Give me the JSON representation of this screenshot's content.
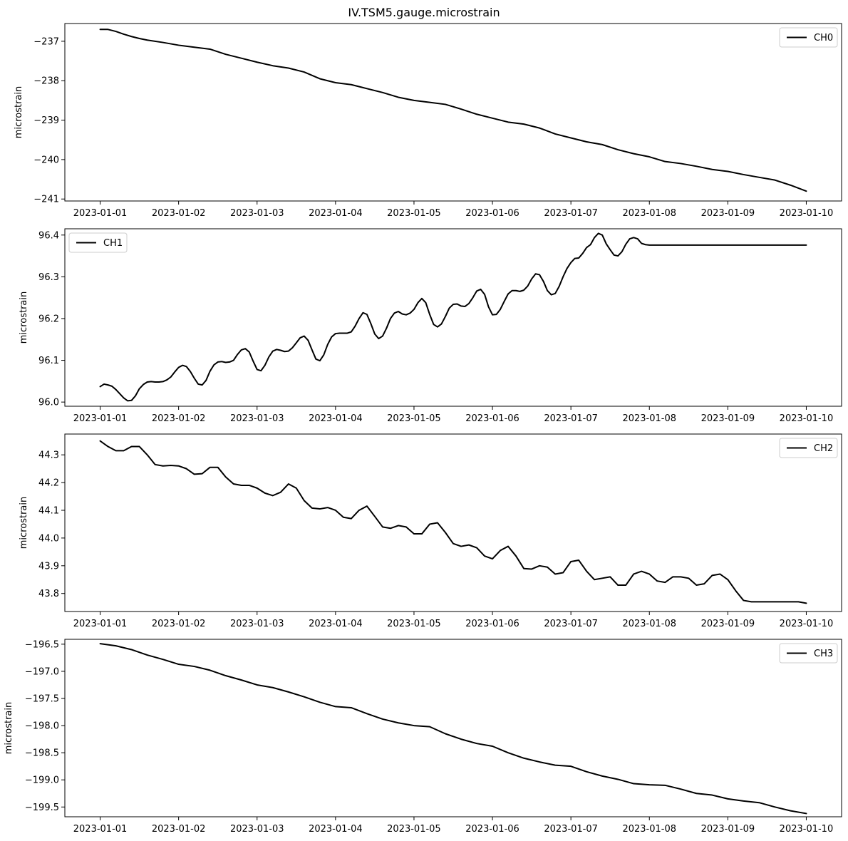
{
  "figure": {
    "title": "IV.TSM5.gauge.microstrain"
  },
  "chart_data": [
    {
      "type": "line",
      "title": "IV.TSM5.gauge.microstrain",
      "xlabel": "",
      "ylabel": "microstrain",
      "x_tick_labels": [
        "2023-01-01",
        "2023-01-02",
        "2023-01-03",
        "2023-01-04",
        "2023-01-05",
        "2023-01-06",
        "2023-01-07",
        "2023-01-08",
        "2023-01-09",
        "2023-01-10"
      ],
      "y_ticks": [
        -237,
        -238,
        -239,
        -240,
        -241
      ],
      "y_tick_labels": [
        "−237",
        "−238",
        "−239",
        "−240",
        "−241"
      ],
      "ylim": [
        -241.05,
        -236.55
      ],
      "xlim": [
        -0.45,
        9.45
      ],
      "grid": false,
      "legend_position": "upper right",
      "series": [
        {
          "name": "CH0",
          "color": "#000000",
          "x": [
            0,
            0.1,
            0.2,
            0.3,
            0.4,
            0.5,
            0.6,
            0.8,
            1.0,
            1.2,
            1.4,
            1.6,
            1.8,
            2.0,
            2.2,
            2.4,
            2.6,
            2.8,
            3.0,
            3.2,
            3.4,
            3.6,
            3.8,
            4.0,
            4.2,
            4.4,
            4.6,
            4.8,
            5.0,
            5.2,
            5.4,
            5.6,
            5.8,
            6.0,
            6.2,
            6.4,
            6.6,
            6.8,
            7.0,
            7.2,
            7.4,
            7.6,
            7.8,
            8.0,
            8.2,
            8.4,
            8.6,
            8.8,
            9.0
          ],
          "values": [
            -236.7,
            -236.7,
            -236.75,
            -236.82,
            -236.88,
            -236.93,
            -236.97,
            -237.03,
            -237.1,
            -237.15,
            -237.2,
            -237.33,
            -237.43,
            -237.53,
            -237.62,
            -237.68,
            -237.78,
            -237.95,
            -238.05,
            -238.1,
            -238.2,
            -238.3,
            -238.42,
            -238.5,
            -238.55,
            -238.6,
            -238.72,
            -238.85,
            -238.95,
            -239.05,
            -239.1,
            -239.2,
            -239.35,
            -239.45,
            -239.55,
            -239.62,
            -239.75,
            -239.85,
            -239.93,
            -240.05,
            -240.1,
            -240.17,
            -240.25,
            -240.3,
            -240.38,
            -240.45,
            -240.52,
            -240.65,
            -240.8
          ]
        }
      ]
    },
    {
      "type": "line",
      "title": "",
      "xlabel": "",
      "ylabel": "microstrain",
      "x_tick_labels": [
        "2023-01-01",
        "2023-01-02",
        "2023-01-03",
        "2023-01-04",
        "2023-01-05",
        "2023-01-06",
        "2023-01-07",
        "2023-01-08",
        "2023-01-09",
        "2023-01-10"
      ],
      "y_ticks": [
        96.0,
        96.1,
        96.2,
        96.3,
        96.4
      ],
      "y_tick_labels": [
        "96.0",
        "96.1",
        "96.2",
        "96.3",
        "96.4"
      ],
      "ylim": [
        95.99,
        96.415
      ],
      "xlim": [
        -0.45,
        9.45
      ],
      "grid": false,
      "legend_position": "upper left",
      "series": [
        {
          "name": "CH1",
          "color": "#000000",
          "x": [
            0,
            0.05,
            0.1,
            0.15,
            0.2,
            0.25,
            0.3,
            0.35,
            0.4,
            0.45,
            0.5,
            0.55,
            0.6,
            0.65,
            0.7,
            0.75,
            0.8,
            0.85,
            0.9,
            0.95,
            1.0,
            1.05,
            1.1,
            1.15,
            1.2,
            1.25,
            1.3,
            1.35,
            1.4,
            1.45,
            1.5,
            1.55,
            1.6,
            1.65,
            1.7,
            1.75,
            1.8,
            1.85,
            1.9,
            1.95,
            2.0,
            2.05,
            2.1,
            2.15,
            2.2,
            2.25,
            2.3,
            2.35,
            2.4,
            2.45,
            2.5,
            2.55,
            2.6,
            2.65,
            2.7,
            2.75,
            2.8,
            2.85,
            2.9,
            2.95,
            3.0,
            3.05,
            3.1,
            3.15,
            3.2,
            3.25,
            3.3,
            3.35,
            3.4,
            3.45,
            3.5,
            3.55,
            3.6,
            3.65,
            3.7,
            3.75,
            3.8,
            3.85,
            3.9,
            3.95,
            4.0,
            4.05,
            4.1,
            4.15,
            4.2,
            4.25,
            4.3,
            4.35,
            4.4,
            4.45,
            4.5,
            4.55,
            4.6,
            4.65,
            4.7,
            4.75,
            4.8,
            4.85,
            4.9,
            4.95,
            5.0,
            5.05,
            5.1,
            5.15,
            5.2,
            5.25,
            5.3,
            5.35,
            5.4,
            5.45,
            5.5,
            5.55,
            5.6,
            5.65,
            5.7,
            5.75,
            5.8,
            5.85,
            5.9,
            5.95,
            6.0,
            6.05,
            6.1,
            6.15,
            6.2,
            6.25,
            6.3,
            6.35,
            6.4,
            6.45,
            6.5,
            6.55,
            6.6,
            6.65,
            6.7,
            6.75,
            6.8,
            6.85,
            6.9,
            6.95,
            7.0,
            7.05,
            7.1,
            7.15,
            7.2,
            7.25,
            7.3,
            7.35,
            7.4,
            7.45,
            7.5,
            7.55,
            7.6,
            7.65,
            7.7,
            7.75,
            7.8,
            7.85,
            7.9,
            7.95,
            8.0,
            8.05,
            8.1,
            8.15,
            8.2,
            8.25,
            8.3,
            8.35,
            8.4,
            8.45,
            8.5,
            8.55,
            8.6,
            8.65,
            8.7,
            8.75,
            8.8,
            8.85,
            8.9,
            8.95,
            9.0
          ],
          "values": [
            96.037,
            96.043,
            96.041,
            96.038,
            96.03,
            96.02,
            96.01,
            96.003,
            96.004,
            96.015,
            96.032,
            96.042,
            96.048,
            96.049,
            96.048,
            96.048,
            96.049,
            96.053,
            96.06,
            96.072,
            96.083,
            96.088,
            96.085,
            96.073,
            96.057,
            96.043,
            96.041,
            96.052,
            96.074,
            96.089,
            96.096,
            96.097,
            96.095,
            96.096,
            96.1,
            96.114,
            96.125,
            96.128,
            96.12,
            96.098,
            96.078,
            96.075,
            96.088,
            96.108,
            96.122,
            96.126,
            96.124,
            96.121,
            96.122,
            96.13,
            96.142,
            96.154,
            96.158,
            96.148,
            96.125,
            96.103,
            96.099,
            96.113,
            96.138,
            96.156,
            96.164,
            96.165,
            96.165,
            96.165,
            96.168,
            96.182,
            96.2,
            96.214,
            96.21,
            96.188,
            96.163,
            96.152,
            96.158,
            96.177,
            96.2,
            96.213,
            96.217,
            96.211,
            96.209,
            96.213,
            96.222,
            96.238,
            96.248,
            96.238,
            96.21,
            96.186,
            96.18,
            96.187,
            96.205,
            96.225,
            96.234,
            96.235,
            96.23,
            96.229,
            96.236,
            96.25,
            96.266,
            96.27,
            96.258,
            96.228,
            96.209,
            96.21,
            96.222,
            96.241,
            96.259,
            96.267,
            96.267,
            96.265,
            96.268,
            96.278,
            96.295,
            96.307,
            96.305,
            96.289,
            96.267,
            96.257,
            96.26,
            96.277,
            96.3,
            96.32,
            96.334,
            96.344,
            96.345,
            96.356,
            96.37,
            96.377,
            96.394,
            96.404,
            96.4,
            96.379,
            96.365,
            96.352,
            96.35,
            96.36,
            96.378,
            96.391,
            96.394,
            96.391,
            96.38,
            96.377,
            96.376,
            96.376,
            96.376,
            96.376,
            96.376,
            96.376,
            96.376,
            96.376,
            96.376,
            96.376,
            96.376,
            96.376,
            96.376,
            96.376,
            96.376,
            96.376,
            96.376,
            96.376,
            96.376,
            96.376,
            96.376,
            96.376,
            96.376,
            96.376,
            96.376,
            96.376,
            96.376,
            96.376,
            96.376,
            96.376,
            96.376,
            96.376,
            96.376,
            96.376,
            96.376,
            96.376,
            96.376,
            96.376,
            96.376,
            96.376,
            96.376
          ]
        }
      ]
    },
    {
      "type": "line",
      "title": "",
      "xlabel": "",
      "ylabel": "microstrain",
      "x_tick_labels": [
        "2023-01-01",
        "2023-01-02",
        "2023-01-03",
        "2023-01-04",
        "2023-01-05",
        "2023-01-06",
        "2023-01-07",
        "2023-01-08",
        "2023-01-09",
        "2023-01-10"
      ],
      "y_ticks": [
        43.8,
        43.9,
        44.0,
        44.1,
        44.2,
        44.3
      ],
      "y_tick_labels": [
        "43.8",
        "43.9",
        "44.0",
        "44.1",
        "44.2",
        "44.3"
      ],
      "ylim": [
        43.735,
        44.375
      ],
      "xlim": [
        -0.45,
        9.45
      ],
      "grid": false,
      "legend_position": "upper right",
      "series": [
        {
          "name": "CH2",
          "color": "#000000",
          "x": [
            0,
            0.1,
            0.2,
            0.3,
            0.4,
            0.5,
            0.6,
            0.7,
            0.8,
            0.9,
            1.0,
            1.1,
            1.2,
            1.3,
            1.4,
            1.5,
            1.6,
            1.7,
            1.8,
            1.9,
            2.0,
            2.1,
            2.2,
            2.3,
            2.4,
            2.5,
            2.6,
            2.7,
            2.8,
            2.9,
            3.0,
            3.1,
            3.2,
            3.3,
            3.4,
            3.5,
            3.6,
            3.7,
            3.8,
            3.9,
            4.0,
            4.1,
            4.2,
            4.3,
            4.4,
            4.5,
            4.6,
            4.7,
            4.8,
            4.9,
            5.0,
            5.1,
            5.2,
            5.3,
            5.4,
            5.5,
            5.6,
            5.7,
            5.8,
            5.9,
            6.0,
            6.1,
            6.2,
            6.3,
            6.4,
            6.5,
            6.6,
            6.7,
            6.8,
            6.9,
            7.0,
            7.1,
            7.2,
            7.3,
            7.4,
            7.5,
            7.6,
            7.7,
            7.8,
            7.9,
            8.0,
            8.1,
            8.2,
            8.3,
            8.4,
            8.5,
            8.6,
            8.7,
            8.8,
            8.9,
            9.0
          ],
          "values": [
            44.35,
            44.33,
            44.315,
            44.315,
            44.33,
            44.33,
            44.3,
            44.265,
            44.26,
            44.262,
            44.26,
            44.25,
            44.23,
            44.232,
            44.255,
            44.255,
            44.22,
            44.195,
            44.19,
            44.19,
            44.18,
            44.162,
            44.153,
            44.165,
            44.195,
            44.18,
            44.135,
            44.108,
            44.105,
            44.11,
            44.1,
            44.075,
            44.07,
            44.1,
            44.115,
            44.078,
            44.04,
            44.035,
            44.045,
            44.04,
            44.015,
            44.015,
            44.05,
            44.055,
            44.02,
            43.98,
            43.97,
            43.975,
            43.965,
            43.935,
            43.925,
            43.955,
            43.97,
            43.935,
            43.89,
            43.888,
            43.9,
            43.895,
            43.87,
            43.875,
            43.915,
            43.92,
            43.88,
            43.85,
            43.855,
            43.86,
            43.83,
            43.83,
            43.87,
            43.88,
            43.87,
            43.845,
            43.84,
            43.86,
            43.86,
            43.855,
            43.83,
            43.835,
            43.865,
            43.87,
            43.85,
            43.81,
            43.775,
            43.77,
            43.77,
            43.77,
            43.77,
            43.77,
            43.77,
            43.77,
            43.765
          ]
        }
      ]
    },
    {
      "type": "line",
      "title": "",
      "xlabel": "",
      "ylabel": "microstrain",
      "x_tick_labels": [
        "2023-01-01",
        "2023-01-02",
        "2023-01-03",
        "2023-01-04",
        "2023-01-05",
        "2023-01-06",
        "2023-01-07",
        "2023-01-08",
        "2023-01-09",
        "2023-01-10"
      ],
      "y_ticks": [
        -196.5,
        -197.0,
        -197.5,
        -198.0,
        -198.5,
        -199.0,
        -199.5
      ],
      "y_tick_labels": [
        "−196.5",
        "−197.0",
        "−197.5",
        "−198.0",
        "−198.5",
        "−199.0",
        "−199.5"
      ],
      "ylim": [
        -199.68,
        -196.41
      ],
      "xlim": [
        -0.45,
        9.45
      ],
      "grid": false,
      "legend_position": "upper right",
      "series": [
        {
          "name": "CH3",
          "color": "#000000",
          "x": [
            0,
            0.2,
            0.4,
            0.6,
            0.8,
            1.0,
            1.2,
            1.4,
            1.6,
            1.8,
            2.0,
            2.2,
            2.4,
            2.6,
            2.8,
            3.0,
            3.2,
            3.4,
            3.6,
            3.8,
            4.0,
            4.2,
            4.4,
            4.6,
            4.8,
            5.0,
            5.2,
            5.4,
            5.6,
            5.8,
            6.0,
            6.2,
            6.4,
            6.6,
            6.8,
            7.0,
            7.2,
            7.4,
            7.6,
            7.8,
            8.0,
            8.2,
            8.4,
            8.6,
            8.8,
            9.0
          ],
          "values": [
            -196.49,
            -196.53,
            -196.6,
            -196.7,
            -196.78,
            -196.87,
            -196.91,
            -196.98,
            -197.08,
            -197.16,
            -197.25,
            -197.3,
            -197.38,
            -197.47,
            -197.57,
            -197.65,
            -197.67,
            -197.78,
            -197.88,
            -197.95,
            -198.0,
            -198.02,
            -198.15,
            -198.25,
            -198.33,
            -198.38,
            -198.5,
            -198.6,
            -198.67,
            -198.73,
            -198.75,
            -198.85,
            -198.93,
            -198.99,
            -199.07,
            -199.09,
            -199.1,
            -199.17,
            -199.25,
            -199.28,
            -199.35,
            -199.39,
            -199.42,
            -199.5,
            -199.57,
            -199.62
          ]
        }
      ]
    }
  ]
}
